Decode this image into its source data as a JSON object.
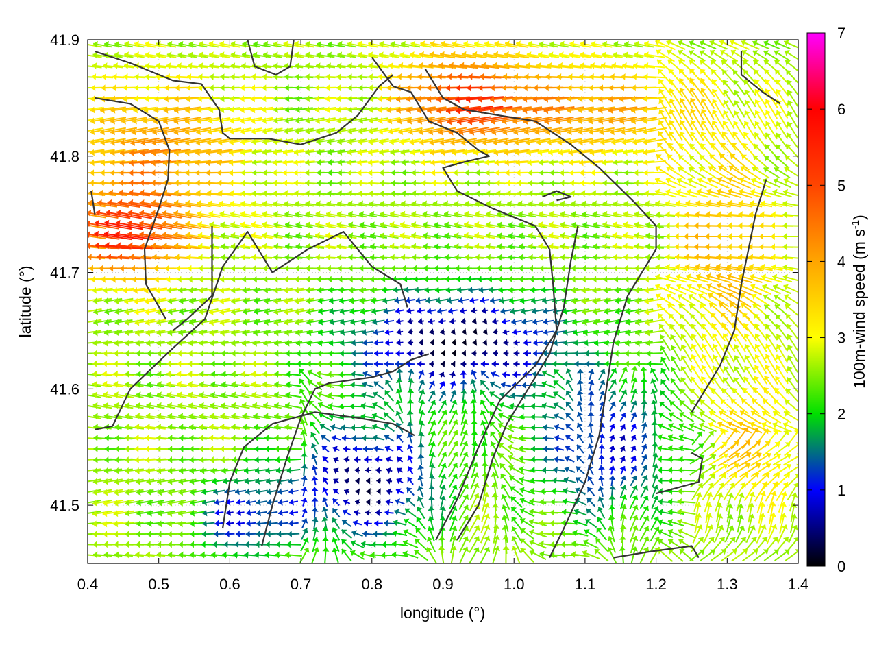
{
  "chart_data": {
    "type": "vector-field",
    "xlabel": "longitude (°)",
    "ylabel": "latitude (°)",
    "xlim": [
      0.4,
      1.4
    ],
    "ylim": [
      41.45,
      41.9
    ],
    "xticks": [
      "0.4",
      "0.5",
      "0.6",
      "0.7",
      "0.8",
      "0.9",
      "1.0",
      "1.1",
      "1.2",
      "1.3",
      "1.4"
    ],
    "yticks": [
      "41.5",
      "41.6",
      "41.7",
      "41.8",
      "41.9"
    ],
    "xtick_values": [
      0.4,
      0.5,
      0.6,
      0.7,
      0.8,
      0.9,
      1.0,
      1.1,
      1.2,
      1.3,
      1.4
    ],
    "ytick_values": [
      41.5,
      41.6,
      41.7,
      41.8,
      41.9
    ],
    "colorbar": {
      "label": "100m-wind speed (m s",
      "label_sup": "-1",
      "label_end": ")",
      "range": [
        0,
        7
      ],
      "ticks": [
        "0",
        "1",
        "2",
        "3",
        "4",
        "5",
        "6",
        "7"
      ],
      "tick_values": [
        0,
        1,
        2,
        3,
        4,
        5,
        6,
        7
      ],
      "colormap": [
        "#000000",
        "#0000ff",
        "#00e000",
        "#ffff00",
        "#ffa500",
        "#ff4500",
        "#ff0000",
        "#ff00ff"
      ]
    },
    "grid_lines": true,
    "contour_color": "#333333",
    "contours": [
      [
        [
          0.41,
          41.89
        ],
        [
          0.46,
          41.88
        ],
        [
          0.52,
          41.865
        ],
        [
          0.56,
          41.862
        ],
        [
          0.585,
          41.84
        ],
        [
          0.59,
          41.82
        ],
        [
          0.6,
          41.815
        ],
        [
          0.655,
          41.815
        ],
        [
          0.7,
          41.81
        ],
        [
          0.75,
          41.82
        ],
        [
          0.78,
          41.835
        ],
        [
          0.81,
          41.86
        ],
        [
          0.83,
          41.87
        ]
      ],
      [
        [
          0.41,
          41.85
        ],
        [
          0.46,
          41.845
        ],
        [
          0.5,
          41.83
        ],
        [
          0.515,
          41.805
        ],
        [
          0.513,
          41.78
        ],
        [
          0.5,
          41.755
        ],
        [
          0.48,
          41.72
        ],
        [
          0.482,
          41.69
        ],
        [
          0.51,
          41.66
        ]
      ],
      [
        [
          0.405,
          41.77
        ],
        [
          0.41,
          41.75
        ]
      ],
      [
        [
          0.625,
          41.9
        ],
        [
          0.635,
          41.877
        ],
        [
          0.665,
          41.87
        ],
        [
          0.685,
          41.877
        ],
        [
          0.69,
          41.9
        ]
      ],
      [
        [
          0.575,
          41.74
        ],
        [
          0.575,
          41.68
        ],
        [
          0.54,
          41.66
        ],
        [
          0.52,
          41.65
        ]
      ],
      [
        [
          0.41,
          41.565
        ],
        [
          0.435,
          41.568
        ],
        [
          0.46,
          41.6
        ],
        [
          0.52,
          41.635
        ],
        [
          0.565,
          41.66
        ],
        [
          0.59,
          41.705
        ],
        [
          0.625,
          41.735
        ],
        [
          0.66,
          41.7
        ],
        [
          0.71,
          41.72
        ],
        [
          0.76,
          41.735
        ],
        [
          0.8,
          41.705
        ],
        [
          0.84,
          41.69
        ],
        [
          0.85,
          41.67
        ]
      ],
      [
        [
          0.8,
          41.885
        ],
        [
          0.83,
          41.86
        ],
        [
          0.855,
          41.855
        ],
        [
          0.88,
          41.83
        ],
        [
          0.92,
          41.82
        ],
        [
          0.95,
          41.805
        ],
        [
          0.965,
          41.8
        ],
        [
          0.93,
          41.795
        ],
        [
          0.9,
          41.79
        ],
        [
          0.92,
          41.77
        ],
        [
          0.97,
          41.755
        ],
        [
          1.03,
          41.74
        ],
        [
          1.05,
          41.72
        ],
        [
          1.055,
          41.69
        ],
        [
          1.06,
          41.65
        ],
        [
          1.03,
          41.62
        ],
        [
          0.98,
          41.59
        ],
        [
          0.95,
          41.55
        ],
        [
          0.92,
          41.505
        ],
        [
          0.89,
          41.47
        ]
      ],
      [
        [
          0.875,
          41.875
        ],
        [
          0.9,
          41.85
        ],
        [
          0.93,
          41.84
        ],
        [
          0.98,
          41.835
        ],
        [
          1.03,
          41.83
        ],
        [
          1.08,
          41.81
        ],
        [
          1.12,
          41.79
        ],
        [
          1.17,
          41.76
        ],
        [
          1.2,
          41.74
        ],
        [
          1.2,
          41.72
        ],
        [
          1.16,
          41.68
        ],
        [
          1.14,
          41.64
        ],
        [
          1.13,
          41.6
        ],
        [
          1.12,
          41.56
        ],
        [
          1.1,
          41.52
        ],
        [
          1.07,
          41.48
        ],
        [
          1.05,
          41.455
        ]
      ],
      [
        [
          0.645,
          41.465
        ],
        [
          0.66,
          41.5
        ],
        [
          0.68,
          41.54
        ],
        [
          0.7,
          41.575
        ],
        [
          0.72,
          41.6
        ],
        [
          0.74,
          41.605
        ],
        [
          0.8,
          41.61
        ],
        [
          0.83,
          41.615
        ],
        [
          0.855,
          41.625
        ],
        [
          0.88,
          41.63
        ]
      ],
      [
        [
          0.59,
          41.48
        ],
        [
          0.6,
          41.52
        ],
        [
          0.62,
          41.55
        ],
        [
          0.66,
          41.57
        ],
        [
          0.72,
          41.58
        ],
        [
          0.78,
          41.575
        ],
        [
          0.83,
          41.57
        ],
        [
          0.86,
          41.56
        ]
      ],
      [
        [
          0.92,
          41.47
        ],
        [
          0.95,
          41.5
        ],
        [
          0.97,
          41.54
        ],
        [
          0.99,
          41.57
        ],
        [
          1.02,
          41.6
        ],
        [
          1.05,
          41.63
        ],
        [
          1.07,
          41.67
        ],
        [
          1.08,
          41.71
        ],
        [
          1.09,
          41.74
        ]
      ],
      [
        [
          1.14,
          41.455
        ],
        [
          1.19,
          41.46
        ],
        [
          1.25,
          41.465
        ],
        [
          1.26,
          41.455
        ]
      ],
      [
        [
          1.2,
          41.51
        ],
        [
          1.23,
          41.515
        ],
        [
          1.26,
          41.52
        ],
        [
          1.265,
          41.54
        ],
        [
          1.25,
          41.545
        ]
      ],
      [
        [
          1.355,
          41.78
        ],
        [
          1.34,
          41.75
        ],
        [
          1.33,
          41.72
        ],
        [
          1.32,
          41.69
        ],
        [
          1.31,
          41.65
        ],
        [
          1.29,
          41.62
        ],
        [
          1.27,
          41.6
        ],
        [
          1.25,
          41.58
        ]
      ],
      [
        [
          1.32,
          41.89
        ],
        [
          1.32,
          41.87
        ],
        [
          1.35,
          41.855
        ],
        [
          1.375,
          41.845
        ]
      ],
      [
        [
          1.04,
          41.765
        ],
        [
          1.06,
          41.77
        ],
        [
          1.08,
          41.765
        ],
        [
          1.06,
          41.762
        ]
      ]
    ]
  }
}
